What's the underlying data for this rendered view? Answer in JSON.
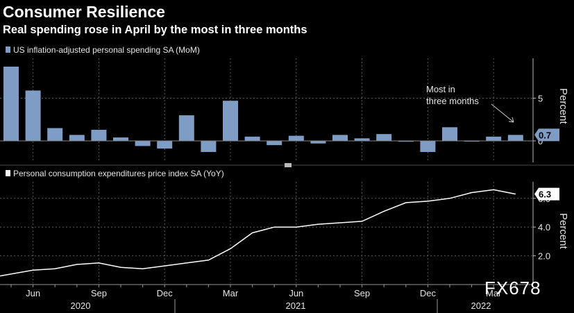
{
  "header": {
    "title": "Consumer Resilience",
    "subtitle": "Real spending rose in April by the most in three months"
  },
  "watermark": "FX678",
  "colors": {
    "bar": "#7f9cc4",
    "line": "#ffffff",
    "background": "#000000",
    "grid": "#5a5a5a"
  },
  "chart_data": [
    {
      "type": "bar",
      "legend": "US inflation-adjusted personal spending SA (MoM)",
      "categories": [
        "2020-05",
        "2020-06",
        "2020-07",
        "2020-08",
        "2020-09",
        "2020-10",
        "2020-11",
        "2020-12",
        "2021-01",
        "2021-02",
        "2021-03",
        "2021-04",
        "2021-05",
        "2021-06",
        "2021-07",
        "2021-08",
        "2021-09",
        "2021-10",
        "2021-11",
        "2021-12",
        "2022-01",
        "2022-02",
        "2022-03",
        "2022-04"
      ],
      "values": [
        8.7,
        5.9,
        1.5,
        0.7,
        1.3,
        0.4,
        -0.6,
        -0.9,
        3.0,
        -1.3,
        4.7,
        0.5,
        -0.5,
        0.6,
        -0.3,
        0.7,
        0.3,
        0.8,
        -0.1,
        -1.3,
        1.6,
        0.0,
        0.5,
        0.7
      ],
      "ylim": [
        -2.5,
        9.5
      ],
      "yticks": [
        5,
        0
      ],
      "ylabel": "Percent",
      "last_value_label": "0.7",
      "annotation": "Most in\nthree months",
      "grid": true
    },
    {
      "type": "line",
      "legend": "Personal consumption expenditures price index SA (YoY)",
      "x": [
        "2020-05",
        "2020-06",
        "2020-07",
        "2020-08",
        "2020-09",
        "2020-10",
        "2020-11",
        "2020-12",
        "2021-01",
        "2021-02",
        "2021-03",
        "2021-04",
        "2021-05",
        "2021-06",
        "2021-07",
        "2021-08",
        "2021-09",
        "2021-10",
        "2021-11",
        "2021-12",
        "2022-01",
        "2022-02",
        "2022-03",
        "2022-04"
      ],
      "values": [
        0.6,
        1.0,
        1.1,
        1.4,
        1.5,
        1.2,
        1.1,
        1.3,
        1.5,
        1.7,
        2.5,
        3.6,
        4.0,
        4.0,
        4.2,
        4.3,
        4.4,
        5.1,
        5.7,
        5.8,
        6.0,
        6.4,
        6.6,
        6.3
      ],
      "ylim": [
        0,
        6.8
      ],
      "yticks": [
        "2.0",
        "4.0",
        "6.0"
      ],
      "ylabel": "Percent",
      "last_value_label": "6.3",
      "grid": true
    }
  ],
  "x_axis": {
    "month_labels": [
      "Jun",
      "Sep",
      "Dec",
      "Mar",
      "Jun",
      "Sep",
      "Dec",
      "Mar"
    ],
    "year_labels": [
      "2020",
      "2021",
      "2022"
    ]
  }
}
